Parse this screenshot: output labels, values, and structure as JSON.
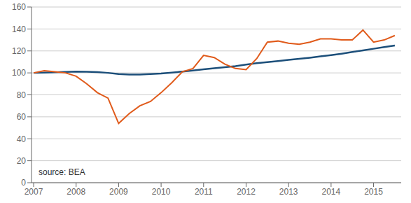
{
  "chart_data": {
    "type": "line",
    "x": [
      2007.0,
      2007.25,
      2007.5,
      2007.75,
      2008.0,
      2008.25,
      2008.5,
      2008.75,
      2009.0,
      2009.25,
      2009.5,
      2009.75,
      2010.0,
      2010.25,
      2010.5,
      2010.75,
      2011.0,
      2011.25,
      2011.5,
      2011.75,
      2012.0,
      2012.25,
      2012.5,
      2012.75,
      2013.0,
      2013.25,
      2013.5,
      2013.75,
      2014.0,
      2014.25,
      2014.5,
      2014.75,
      2015.0,
      2015.25,
      2015.5
    ],
    "series": [
      {
        "color": "#1c4f7a",
        "values": [
          100,
          100.3,
          100.6,
          100.9,
          101.2,
          101.0,
          100.7,
          100.0,
          99.0,
          98.5,
          98.5,
          99.0,
          99.5,
          100.3,
          101.2,
          102.2,
          103.2,
          104.2,
          105.2,
          106.2,
          107.5,
          108.8,
          109.8,
          110.8,
          111.8,
          112.8,
          113.8,
          115.0,
          116.2,
          117.5,
          119.0,
          120.5,
          122.0,
          123.5,
          125.0
        ]
      },
      {
        "color": "#e05a1a",
        "values": [
          100,
          102,
          101,
          100,
          97,
          90,
          82,
          77,
          54,
          63,
          70,
          74,
          82,
          91,
          101,
          104,
          116,
          114,
          108,
          104,
          103,
          113,
          128,
          129,
          127,
          126,
          128,
          131,
          131,
          130,
          130,
          139,
          128,
          130,
          134
        ]
      }
    ],
    "xlim": [
      2006.95,
      2015.65
    ],
    "xticks": [
      2007,
      2008,
      2009,
      2010,
      2011,
      2012,
      2013,
      2014,
      2015
    ],
    "ylim": [
      0,
      160
    ],
    "yticks": [
      0,
      20,
      40,
      60,
      80,
      100,
      120,
      140,
      160
    ],
    "grid": true,
    "annotations": [
      "source: BEA"
    ]
  }
}
